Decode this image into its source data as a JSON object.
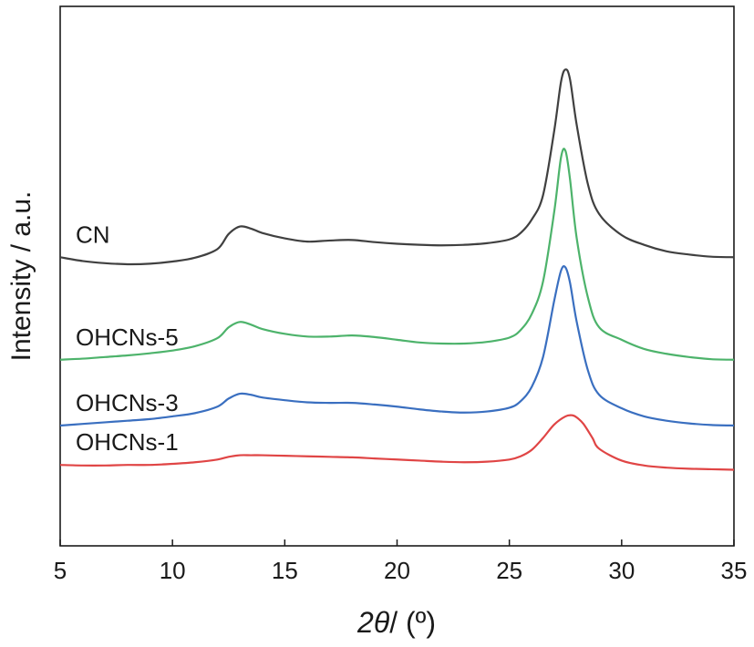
{
  "chart_data": {
    "type": "line",
    "xlabel_prefix": "2",
    "xlabel_symbol": "θ",
    "xlabel_suffix": "/ (º)",
    "ylabel": "Intensity / a.u.",
    "xlim": [
      5,
      35
    ],
    "ylim": [
      0,
      100
    ],
    "xticks": [
      5,
      10,
      15,
      20,
      25,
      30,
      35
    ],
    "xtick_labels": [
      "5",
      "10",
      "15",
      "20",
      "25",
      "30",
      "35"
    ],
    "grid": false,
    "legend": "none",
    "series": [
      {
        "name": "CN",
        "color": "#404040",
        "x": [
          5,
          6,
          7,
          8,
          9,
          10,
          11,
          12,
          12.5,
          13,
          13.5,
          14,
          15,
          16,
          17,
          18,
          19,
          20,
          21,
          22,
          23,
          24,
          25,
          25.5,
          26,
          26.5,
          27,
          27.3,
          27.5,
          27.7,
          28,
          28.5,
          29,
          30,
          31,
          32,
          33,
          34,
          35
        ],
        "values": [
          53.5,
          52.8,
          52.4,
          52.2,
          52.3,
          52.7,
          53.4,
          55,
          57.8,
          59.2,
          58.8,
          58,
          57,
          56.4,
          56.6,
          56.7,
          56.3,
          56,
          55.8,
          55.7,
          55.8,
          56.1,
          56.8,
          58,
          60.5,
          65,
          77,
          86,
          88.3,
          86.5,
          78,
          67,
          61.5,
          57.6,
          55.8,
          54.6,
          54,
          53.6,
          53.5
        ]
      },
      {
        "name": "OHCNs-5",
        "color": "#4db36b",
        "x": [
          5,
          6,
          7,
          8,
          9,
          10,
          11,
          12,
          12.5,
          13,
          13.5,
          14,
          15,
          16,
          17,
          18,
          19,
          20,
          21,
          22,
          23,
          24,
          25,
          25.5,
          26,
          26.5,
          27,
          27.3,
          27.5,
          27.7,
          28,
          28.5,
          29,
          30,
          31,
          32,
          33,
          34,
          35
        ],
        "values": [
          34.5,
          34.7,
          35,
          35.3,
          35.7,
          36.2,
          37,
          38.5,
          40.5,
          41.5,
          41,
          40.2,
          39.3,
          38.8,
          38.8,
          39,
          38.7,
          38.2,
          37.7,
          37.5,
          37.5,
          37.8,
          38.6,
          40,
          43,
          49,
          62,
          72,
          73.2,
          68,
          57,
          46,
          40.5,
          38.2,
          36.5,
          35.6,
          35,
          34.6,
          34.5
        ]
      },
      {
        "name": "OHCNs-3",
        "color": "#3a6fc0",
        "x": [
          5,
          6,
          7,
          8,
          9,
          10,
          11,
          12,
          12.5,
          13,
          13.5,
          14,
          15,
          16,
          17,
          18,
          19,
          20,
          21,
          22,
          23,
          24,
          25,
          25.5,
          26,
          26.5,
          27,
          27.3,
          27.5,
          27.7,
          28,
          28.5,
          29,
          30,
          31,
          32,
          33,
          34,
          35
        ],
        "values": [
          22.3,
          22.6,
          22.9,
          23.2,
          23.5,
          24,
          24.6,
          25.8,
          27.3,
          28.2,
          28,
          27.5,
          27,
          26.6,
          26.5,
          26.5,
          26.2,
          25.8,
          25.3,
          24.9,
          24.7,
          24.9,
          25.6,
          26.8,
          29.5,
          35,
          45.5,
          51,
          51.6,
          48.8,
          41.5,
          32.5,
          28,
          25.5,
          24,
          23.2,
          22.7,
          22.4,
          22.3
        ]
      },
      {
        "name": "OHCNs-1",
        "color": "#e04545",
        "x": [
          5,
          6,
          7,
          8,
          9,
          10,
          11,
          12,
          12.5,
          13,
          13.5,
          14,
          15,
          16,
          17,
          18,
          19,
          20,
          21,
          22,
          23,
          24,
          25,
          25.5,
          26,
          26.5,
          27,
          27.5,
          27.8,
          28,
          28.3,
          28.7,
          29,
          30,
          31,
          32,
          33,
          34,
          35
        ],
        "values": [
          15,
          14.9,
          14.9,
          15,
          15,
          15.2,
          15.5,
          16,
          16.5,
          16.8,
          16.8,
          16.8,
          16.7,
          16.6,
          16.5,
          16.4,
          16.2,
          16,
          15.8,
          15.6,
          15.5,
          15.6,
          16,
          16.6,
          17.8,
          20,
          22.5,
          24,
          24.2,
          23.8,
          22.6,
          20,
          18,
          15.8,
          14.9,
          14.5,
          14.3,
          14.2,
          14.1
        ]
      }
    ]
  }
}
